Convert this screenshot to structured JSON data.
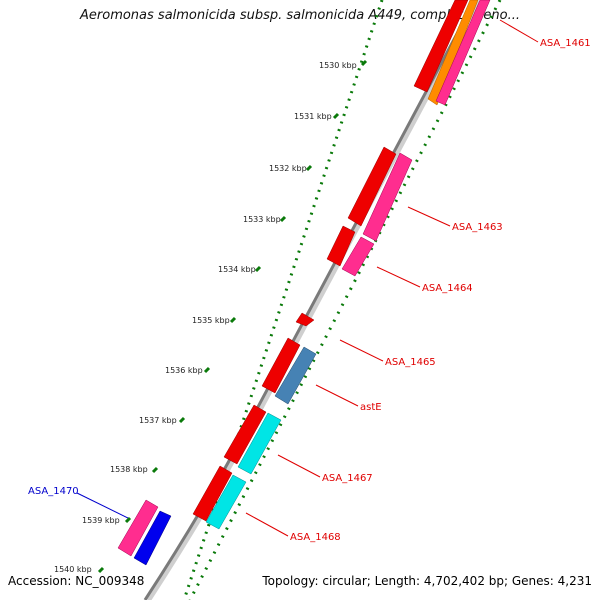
{
  "title": "Aeromonas salmonicida subsp. salmonicida A449, complete geno...",
  "footer": {
    "accession": "Accession: NC_009348",
    "summary": "Topology: circular; Length: 4,702,402 bp; Genes: 4,231"
  },
  "ticks": [
    "1530 kbp",
    "1531 kbp",
    "1532 kbp",
    "1533 kbp",
    "1534 kbp",
    "1535 kbp",
    "1536 kbp",
    "1537 kbp",
    "1538 kbp",
    "1539 kbp",
    "1540 kbp"
  ],
  "gene_labels": [
    "ASA_1461",
    "ASA_1463",
    "ASA_1464",
    "ASA_1465",
    "astE",
    "ASA_1467",
    "ASA_1468",
    "ASA_1470"
  ],
  "colors": {
    "label_red": "#e00000",
    "label_blue": "#0000cc",
    "backbone": "#808080",
    "tick_dots": "#0a7a0a",
    "gene_red": "#ee0000",
    "gene_pink": "#ff2d8f",
    "gene_orange": "#ff8c00",
    "gene_cyan": "#00e5e5",
    "gene_steel": "#4682b4",
    "gene_blue": "#0000ee"
  }
}
